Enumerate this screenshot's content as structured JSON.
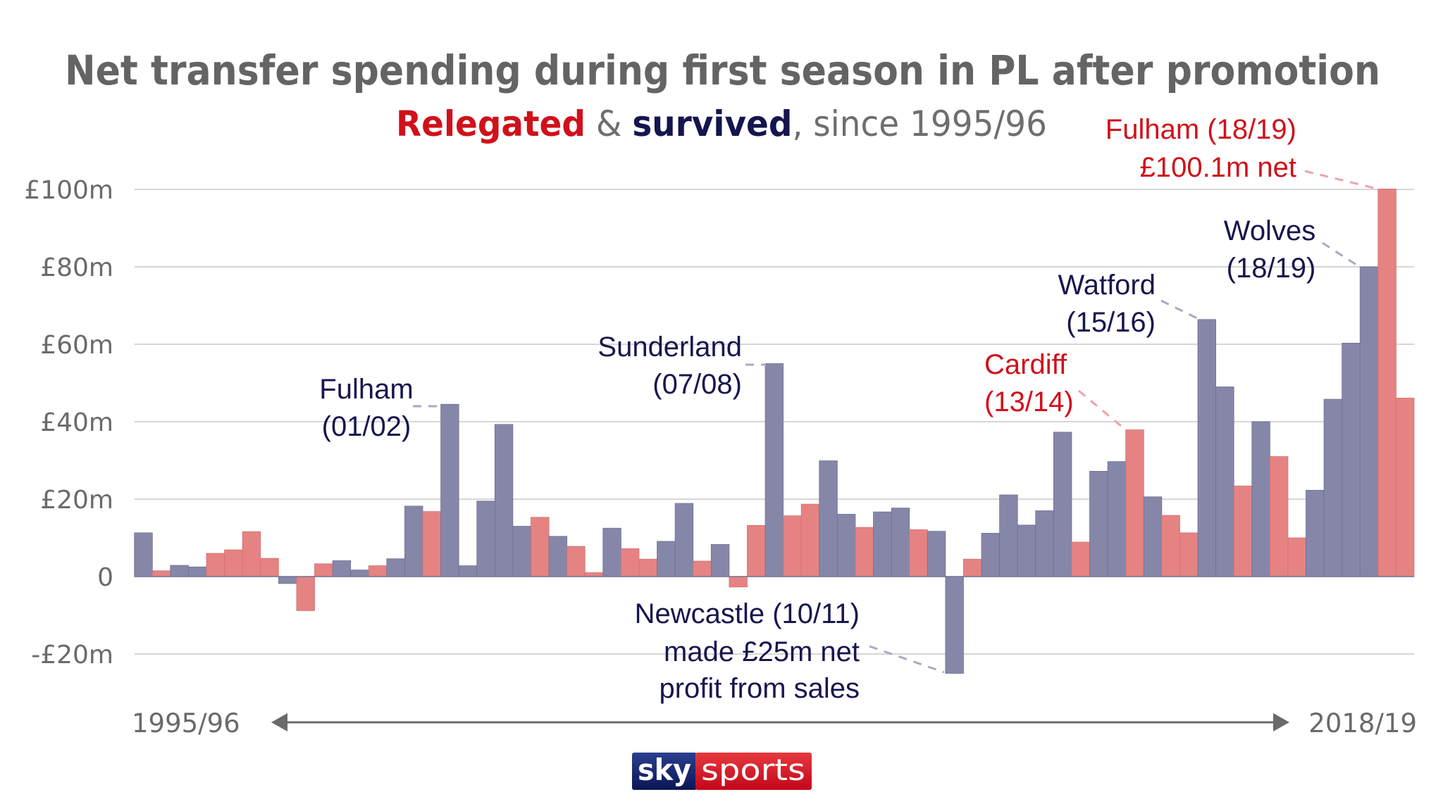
{
  "chart_data": {
    "type": "bar",
    "title": "Net transfer spending during first season in PL after promotion",
    "subtitle": {
      "relegated": "Relegated",
      "ampersand": " & ",
      "survived": "survived",
      "rest": ", since 1995/96"
    },
    "xlabel": "",
    "ylabel": "",
    "x_range_labels": {
      "start": "1995/96",
      "end": "2018/19"
    },
    "ylim": [
      -20,
      100
    ],
    "yticks": [
      -20,
      0,
      20,
      40,
      60,
      80,
      100
    ],
    "ytick_labels": [
      "-£20m",
      "0",
      "£20m",
      "£40m",
      "£60m",
      "£80m",
      "£100m"
    ],
    "grid": true,
    "legend": "in subtitle (red = relegated, navy = survived)",
    "series": [
      {
        "name": "Relegated",
        "key": "relegated",
        "color": "#e58383"
      },
      {
        "name": "Survived",
        "key": "survived",
        "color": "#8687a8"
      }
    ],
    "bars": [
      {
        "status": "survived",
        "value": 11.3
      },
      {
        "status": "relegated",
        "value": 1.5
      },
      {
        "status": "survived",
        "value": 2.9
      },
      {
        "status": "survived",
        "value": 2.5
      },
      {
        "status": "relegated",
        "value": 6.0
      },
      {
        "status": "relegated",
        "value": 6.9
      },
      {
        "status": "relegated",
        "value": 11.6
      },
      {
        "status": "relegated",
        "value": 4.7
      },
      {
        "status": "survived",
        "value": -1.8
      },
      {
        "status": "relegated",
        "value": -8.8
      },
      {
        "status": "relegated",
        "value": 3.3
      },
      {
        "status": "survived",
        "value": 4.1
      },
      {
        "status": "survived",
        "value": 1.7
      },
      {
        "status": "relegated",
        "value": 2.8
      },
      {
        "status": "survived",
        "value": 4.6
      },
      {
        "status": "survived",
        "value": 18.2
      },
      {
        "status": "relegated",
        "value": 16.8
      },
      {
        "status": "survived",
        "value": 44.5
      },
      {
        "status": "survived",
        "value": 2.8
      },
      {
        "status": "survived",
        "value": 19.5
      },
      {
        "status": "survived",
        "value": 39.3
      },
      {
        "status": "survived",
        "value": 13.0
      },
      {
        "status": "relegated",
        "value": 15.3
      },
      {
        "status": "survived",
        "value": 10.4
      },
      {
        "status": "relegated",
        "value": 7.8
      },
      {
        "status": "relegated",
        "value": 1.0
      },
      {
        "status": "survived",
        "value": 12.5
      },
      {
        "status": "relegated",
        "value": 7.2
      },
      {
        "status": "relegated",
        "value": 4.5
      },
      {
        "status": "survived",
        "value": 9.1
      },
      {
        "status": "survived",
        "value": 18.9
      },
      {
        "status": "relegated",
        "value": 4.0
      },
      {
        "status": "survived",
        "value": 8.3
      },
      {
        "status": "relegated",
        "value": -2.7
      },
      {
        "status": "relegated",
        "value": 13.2
      },
      {
        "status": "survived",
        "value": 55.0
      },
      {
        "status": "relegated",
        "value": 15.7
      },
      {
        "status": "relegated",
        "value": 18.7
      },
      {
        "status": "survived",
        "value": 29.9
      },
      {
        "status": "survived",
        "value": 16.1
      },
      {
        "status": "relegated",
        "value": 12.7
      },
      {
        "status": "survived",
        "value": 16.7
      },
      {
        "status": "survived",
        "value": 17.7
      },
      {
        "status": "relegated",
        "value": 12.1
      },
      {
        "status": "survived",
        "value": 11.7
      },
      {
        "status": "survived",
        "value": -25.0
      },
      {
        "status": "relegated",
        "value": 4.5
      },
      {
        "status": "survived",
        "value": 11.2
      },
      {
        "status": "survived",
        "value": 21.1
      },
      {
        "status": "survived",
        "value": 13.3
      },
      {
        "status": "survived",
        "value": 17.0
      },
      {
        "status": "survived",
        "value": 37.3
      },
      {
        "status": "relegated",
        "value": 8.9
      },
      {
        "status": "survived",
        "value": 27.2
      },
      {
        "status": "survived",
        "value": 29.7
      },
      {
        "status": "relegated",
        "value": 37.9
      },
      {
        "status": "survived",
        "value": 20.6
      },
      {
        "status": "relegated",
        "value": 15.8
      },
      {
        "status": "relegated",
        "value": 11.3
      },
      {
        "status": "survived",
        "value": 66.4
      },
      {
        "status": "survived",
        "value": 49.0
      },
      {
        "status": "relegated",
        "value": 23.4
      },
      {
        "status": "survived",
        "value": 40.0
      },
      {
        "status": "relegated",
        "value": 31.0
      },
      {
        "status": "relegated",
        "value": 10.0
      },
      {
        "status": "survived",
        "value": 22.3
      },
      {
        "status": "survived",
        "value": 45.8
      },
      {
        "status": "survived",
        "value": 60.3
      },
      {
        "status": "survived",
        "value": 80.0
      },
      {
        "status": "relegated",
        "value": 100.1
      },
      {
        "status": "relegated",
        "value": 46.1
      }
    ],
    "annotations": {
      "fulham_0102": {
        "lines": [
          "Fulham",
          "(01/02)"
        ],
        "status": "survived",
        "bar": 18
      },
      "sunderland_0708": {
        "lines": [
          "Sunderland",
          "(07/08)"
        ],
        "status": "survived",
        "bar": 36
      },
      "newcastle_1011": {
        "lines": [
          "Newcastle (10/11)",
          "made £25m net",
          "profit from sales"
        ],
        "status": "survived",
        "bar": 46
      },
      "cardiff_1314": {
        "lines": [
          "Cardiff",
          "(13/14)"
        ],
        "status": "relegated",
        "bar": 56
      },
      "watford_1516": {
        "lines": [
          "Watford",
          "(15/16)"
        ],
        "status": "survived",
        "bar": 60
      },
      "wolves_1819": {
        "lines": [
          "Wolves",
          "(18/19)"
        ],
        "status": "survived",
        "bar": 69
      },
      "fulham_1819": {
        "lines": [
          "Fulham (18/19)",
          "£100.1m net"
        ],
        "status": "relegated",
        "bar": 70
      }
    }
  },
  "branding": {
    "logo_left": "sky",
    "logo_right": "sports",
    "logo_left_color": "#0f1d63",
    "logo_right_color": "#d4111d"
  },
  "colors": {
    "title": "#646464",
    "relegated_text": "#d0111b",
    "survived_text": "#15154f",
    "relegated_bar": "#e58383",
    "survived_bar": "#8687a8",
    "gridline": "#d6d6d6"
  }
}
